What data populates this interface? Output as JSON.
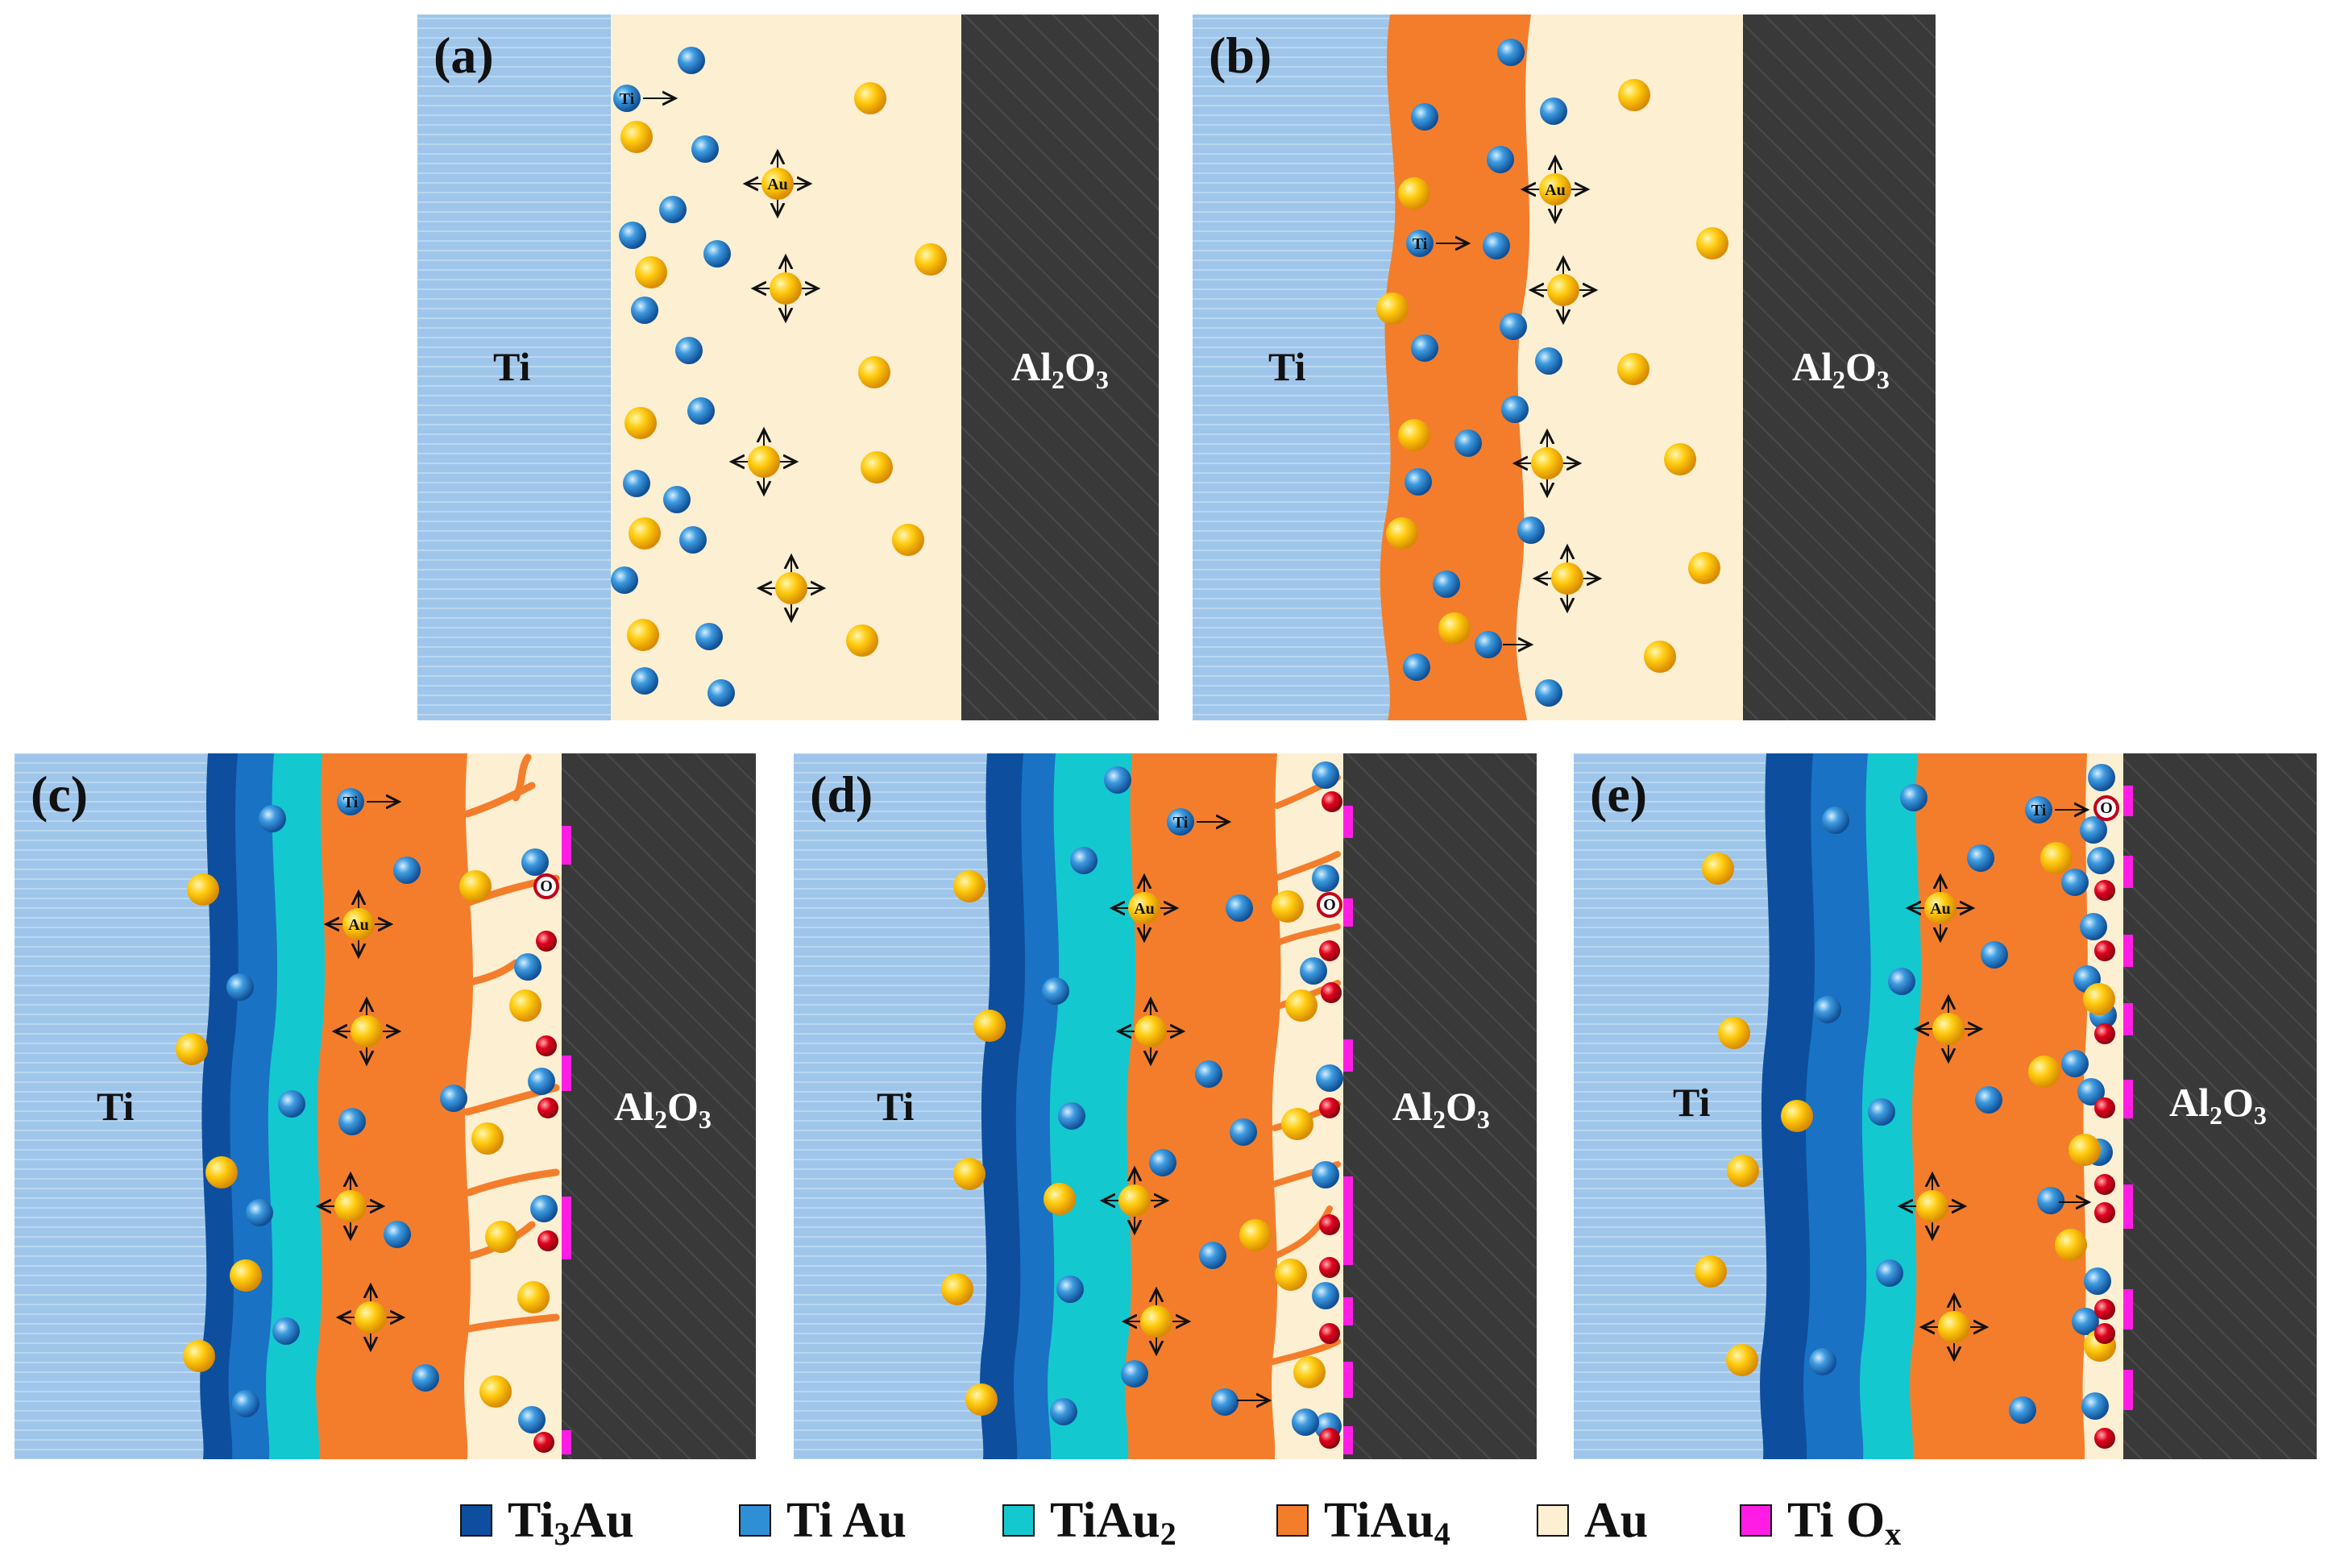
{
  "panels": [
    {
      "id": "a",
      "label": "(a)",
      "left": "Ti",
      "right": "Al2O3",
      "right_main": "Al",
      "right_sub1": "2",
      "right_mid": "O",
      "right_sub2": "3",
      "ti_arrow": "Ti",
      "au_arrow": "Au"
    },
    {
      "id": "b",
      "label": "(b)",
      "left": "Ti",
      "right_main": "Al",
      "right_sub1": "2",
      "right_mid": "O",
      "right_sub2": "3",
      "ti_arrow": "Ti",
      "au_arrow": "Au"
    },
    {
      "id": "c",
      "label": "(c)",
      "left": "Ti",
      "right_main": "Al",
      "right_sub1": "2",
      "right_mid": "O",
      "right_sub2": "3",
      "ti_arrow": "Ti",
      "au_arrow": "Au",
      "o_label": "O"
    },
    {
      "id": "d",
      "label": "(d)",
      "left": "Ti",
      "right_main": "Al",
      "right_sub1": "2",
      "right_mid": "O",
      "right_sub2": "3",
      "ti_arrow": "Ti",
      "au_arrow": "Au",
      "o_label": "O"
    },
    {
      "id": "e",
      "label": "(e)",
      "left": "Ti",
      "right_main": "Al",
      "right_sub1": "2",
      "right_mid": "O",
      "right_sub2": "3",
      "ti_arrow": "Ti",
      "au_arrow": "Au",
      "o_label": "O"
    }
  ],
  "legend": [
    {
      "main": "Ti",
      "sub": "3",
      "tail": "Au",
      "color": "#0d4f9e",
      "name": "legend-ti3au"
    },
    {
      "main": "Ti Au",
      "sub": "",
      "tail": "",
      "color": "#2f8fd6",
      "name": "legend-tiau"
    },
    {
      "main": "TiAu",
      "sub": "2",
      "tail": "",
      "color": "#14c8cf",
      "name": "legend-tiau2"
    },
    {
      "main": "TiAu",
      "sub": "4",
      "tail": "",
      "color": "#f47d2c",
      "name": "legend-tiau4"
    },
    {
      "main": "Au",
      "sub": "",
      "tail": "",
      "color": "#fcefd2",
      "name": "legend-au"
    },
    {
      "main": "Ti O",
      "sub": "x",
      "tail": "",
      "color": "#ff1de6",
      "name": "legend-tiox"
    }
  ],
  "colors": {
    "ti": "#9fc6ea",
    "au_layer": "#fcefd2",
    "al2o3": "#3a3a3a",
    "ti3au": "#0d4f9e",
    "tiau": "#2f8fd6",
    "tiau2": "#14c8cf",
    "tiau4": "#f47d2c",
    "tiox": "#ff1de6",
    "gold": "#f7b500",
    "blue_atom": "#2e86d4",
    "red_atom": "#d8001c"
  }
}
